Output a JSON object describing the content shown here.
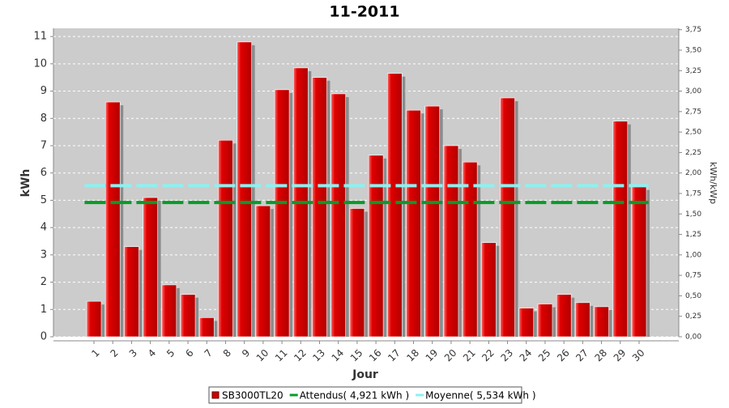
{
  "chart_data": {
    "type": "bar",
    "title": "11-2011",
    "x_label": "Jour",
    "y_label": "kWh",
    "y2_label": "kWh/kWp",
    "categories": [
      "1",
      "2",
      "3",
      "4",
      "5",
      "6",
      "7",
      "8",
      "9",
      "10",
      "11",
      "12",
      "13",
      "14",
      "15",
      "16",
      "17",
      "18",
      "19",
      "20",
      "21",
      "22",
      "23",
      "24",
      "25",
      "26",
      "27",
      "28",
      "29",
      "30"
    ],
    "series": [
      {
        "name": "SB3000TL20",
        "color": "#cc0000",
        "values": [
          1.3,
          8.6,
          3.3,
          5.1,
          1.9,
          1.55,
          0.7,
          7.2,
          10.8,
          4.8,
          9.05,
          9.85,
          9.5,
          8.9,
          4.7,
          6.65,
          9.65,
          8.3,
          8.45,
          7.0,
          6.4,
          3.45,
          8.75,
          1.05,
          1.2,
          1.55,
          1.25,
          1.1,
          7.9,
          5.5
        ]
      }
    ],
    "reference_lines": [
      {
        "name": "Attendus( 4,921 kWh )",
        "value": 4.921,
        "color": "#0a9a2a"
      },
      {
        "name": "Moyenne( 5,534 kWh )",
        "value": 5.534,
        "color": "#8ef0f0"
      }
    ],
    "ylim": [
      0,
      11.3
    ],
    "yticks": [
      0,
      1,
      2,
      3,
      4,
      5,
      6,
      7,
      8,
      9,
      10,
      11
    ],
    "y2lim": [
      0,
      3.7667
    ],
    "y2ticks": [
      {
        "value": 0,
        "label": "0,00"
      },
      {
        "value": 0.25,
        "label": "0,25"
      },
      {
        "value": 0.5,
        "label": "0,50"
      },
      {
        "value": 0.75,
        "label": "0,75"
      },
      {
        "value": 1,
        "label": "1,00"
      },
      {
        "value": 1.25,
        "label": "1,25"
      },
      {
        "value": 1.5,
        "label": "1,50"
      },
      {
        "value": 1.75,
        "label": "1,75"
      },
      {
        "value": 2,
        "label": "2,00"
      },
      {
        "value": 2.25,
        "label": "2,25"
      },
      {
        "value": 2.5,
        "label": "2,50"
      },
      {
        "value": 2.75,
        "label": "2,75"
      },
      {
        "value": 3,
        "label": "3,00"
      },
      {
        "value": 3.25,
        "label": "3,25"
      },
      {
        "value": 3.5,
        "label": "3,50"
      },
      {
        "value": 3.75,
        "label": "3,75"
      }
    ],
    "grid": true
  }
}
